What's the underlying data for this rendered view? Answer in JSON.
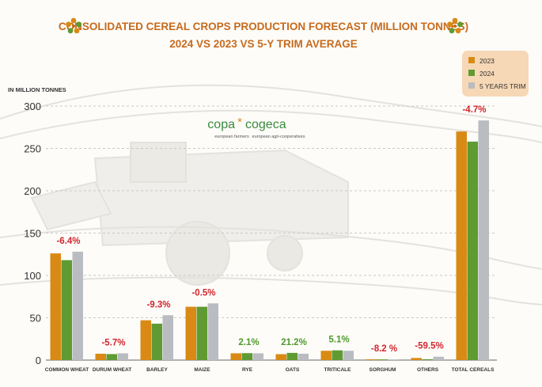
{
  "header": {
    "title_line1": "CONSOLIDATED CEREAL CROPS PRODUCTION FORECAST (MILLION TONNES)",
    "title_line2": "2024 VS 2023 VS 5-Y TRIM AVERAGE",
    "flower_icon": "flower-icon"
  },
  "logo": {
    "left": "copa",
    "star": "*",
    "right": "cogeca",
    "tagline_left": "european farmers",
    "tagline_right": "european agri-cooperatives"
  },
  "colors": {
    "title": "#c76a1c",
    "y2023": "#d98a14",
    "y2024": "#5f9b32",
    "trim": "#b9bcc0",
    "legend_bg": "#f6d8b6",
    "negative": "#d0262d",
    "positive": "#4e9a2b",
    "axis_text": "#333333",
    "logo_text": "#3b8a3e"
  },
  "chart_data": {
    "type": "bar",
    "title": "CONSOLIDATED CEREAL CROPS PRODUCTION FORECAST (MILLION TONNES)",
    "subtitle": "2024 VS 2023 VS 5-Y TRIM AVERAGE",
    "ylabel": "IN MILLION TONNES",
    "xlabel": "",
    "ylim": [
      0,
      300
    ],
    "yticks": [
      0,
      50,
      100,
      150,
      200,
      250,
      300
    ],
    "grid": true,
    "legend_position": "top-right",
    "categories": [
      "COMMON WHEAT",
      "DURUM WHEAT",
      "BARLEY",
      "MAIZE",
      "RYE",
      "OATS",
      "TRITICALE",
      "SORGHUM",
      "OTHERS",
      "TOTAL CEREALS"
    ],
    "series": [
      {
        "name": "2023",
        "values": [
          126,
          7.5,
          47,
          63,
          8,
          7,
          11,
          0.9,
          2.5,
          270
        ]
      },
      {
        "name": "2024",
        "values": [
          118,
          7.1,
          43,
          63,
          8.2,
          8.5,
          11.5,
          0.8,
          1.0,
          258
        ]
      },
      {
        "name": "5 YEARS TRIM",
        "values": [
          128,
          8,
          53,
          67,
          8,
          7.5,
          11,
          0.8,
          4,
          283
        ]
      }
    ],
    "change_labels": [
      "-6.4%",
      "-5.7%",
      "-9.3%",
      "-0.5%",
      "2.1%",
      "21.2%",
      "5.1%",
      "-8.2 %",
      "-59.5%",
      "-4.7%"
    ],
    "change_sign": [
      "neg",
      "neg",
      "neg",
      "neg",
      "pos",
      "pos",
      "pos",
      "neg",
      "neg",
      "neg"
    ]
  }
}
